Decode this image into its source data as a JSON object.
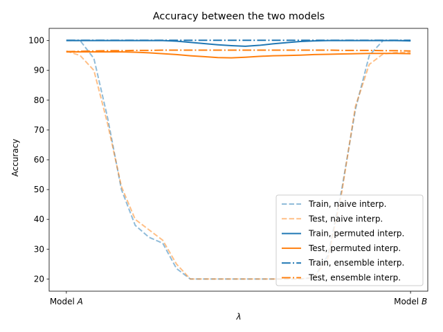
{
  "chart_data": {
    "type": "line",
    "title": "Accuracy between the two models",
    "xlabel": "λ",
    "ylabel": "Accuracy",
    "xlim": [
      -0.05,
      1.05
    ],
    "ylim": [
      15.9,
      104.1
    ],
    "yticks": [
      20,
      30,
      40,
      50,
      60,
      70,
      80,
      90,
      100
    ],
    "xticks": [
      {
        "value": 0,
        "prefix": "Model ",
        "var": "A"
      },
      {
        "value": 1,
        "prefix": "Model ",
        "var": "B"
      }
    ],
    "grid": false,
    "legend_position": "lower right",
    "x": [
      0,
      0.04,
      0.08,
      0.12,
      0.16,
      0.2,
      0.24,
      0.28,
      0.32,
      0.36,
      0.4,
      0.44,
      0.48,
      0.52,
      0.56,
      0.6,
      0.64,
      0.68,
      0.72,
      0.76,
      0.8,
      0.84,
      0.88,
      0.92,
      0.96,
      1.0
    ],
    "series": [
      {
        "name": "Train, naive interp.",
        "color": "#1f77b4",
        "dash": "dashed",
        "opacity": 0.5,
        "values": [
          100,
          100,
          94,
          74,
          50,
          38,
          34,
          32,
          23.5,
          20,
          20,
          20,
          20,
          20,
          20,
          20,
          20,
          20,
          20.5,
          28,
          50,
          77,
          95,
          100,
          100,
          100
        ]
      },
      {
        "name": "Test, naive interp.",
        "color": "#ff7f0e",
        "dash": "dashed",
        "opacity": 0.5,
        "values": [
          96.5,
          95,
          90,
          72,
          51,
          40,
          36.5,
          33,
          25,
          20,
          20,
          20,
          20,
          20,
          20,
          20,
          20,
          20,
          20.5,
          27,
          49,
          78,
          92,
          95.5,
          96,
          96
        ]
      },
      {
        "name": "Train, permuted interp.",
        "color": "#1f77b4",
        "dash": "solid",
        "opacity": 1,
        "values": [
          100,
          100,
          100,
          100,
          100,
          100,
          100,
          100,
          99.8,
          99.4,
          99,
          98.6,
          98.3,
          98.1,
          98.4,
          98.9,
          99.3,
          99.7,
          99.9,
          100,
          100,
          100,
          100,
          100,
          100,
          99.9
        ]
      },
      {
        "name": "Test, permuted interp.",
        "color": "#ff7f0e",
        "dash": "solid",
        "opacity": 1,
        "values": [
          96.2,
          96.2,
          96.2,
          96.2,
          96.2,
          96.1,
          95.9,
          95.6,
          95.3,
          94.9,
          94.6,
          94.3,
          94.2,
          94.4,
          94.7,
          94.9,
          95.0,
          95.1,
          95.3,
          95.4,
          95.5,
          95.6,
          95.7,
          95.7,
          95.7,
          95.6
        ]
      },
      {
        "name": "Train, ensemble interp.",
        "color": "#1f77b4",
        "dash": "dashdot",
        "opacity": 1,
        "values": [
          100.1,
          100.1,
          100.1,
          100.1,
          100.1,
          100.1,
          100.1,
          100.1,
          100.1,
          100.1,
          100.1,
          100.1,
          100.1,
          100.1,
          100.1,
          100.1,
          100.1,
          100.1,
          100.1,
          100.1,
          100.1,
          100.1,
          100.1,
          100.1,
          100.1,
          100.1
        ]
      },
      {
        "name": "Test, ensemble interp.",
        "color": "#ff7f0e",
        "dash": "dashdot",
        "opacity": 1,
        "values": [
          96.3,
          96.4,
          96.5,
          96.6,
          96.6,
          96.7,
          96.7,
          96.8,
          96.8,
          96.8,
          96.8,
          96.8,
          96.8,
          96.8,
          96.8,
          96.8,
          96.8,
          96.8,
          96.8,
          96.8,
          96.7,
          96.7,
          96.7,
          96.6,
          96.6,
          96.5
        ]
      }
    ]
  }
}
